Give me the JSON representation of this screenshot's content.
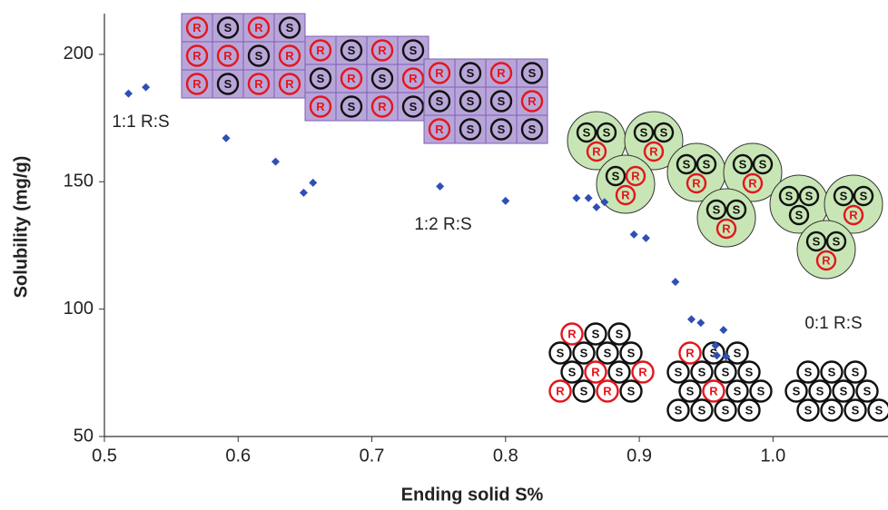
{
  "chart_data": {
    "type": "scatter",
    "x_label": "Ending solid S%",
    "y_label": "Solubility (mg/g)",
    "color": "#2f4fb5",
    "x": [
      0.518,
      0.531,
      0.591,
      0.628,
      0.649,
      0.656,
      0.751,
      0.8,
      0.853,
      0.862,
      0.868,
      0.874,
      0.896,
      0.905,
      0.927,
      0.939,
      0.946,
      0.963,
      0.957,
      0.958,
      0.965
    ],
    "values": [
      184.6,
      187.1,
      167.1,
      157.9,
      145.7,
      149.6,
      148.2,
      142.5,
      143.6,
      143.6,
      140,
      142,
      129.3,
      127.9,
      110.7,
      96,
      94.6,
      91.8,
      85.7,
      81.8,
      81.4
    ],
    "xlim": [
      0.5,
      1.086
    ],
    "ylim": [
      50,
      216
    ],
    "xticks": [
      0.5,
      0.6,
      0.7,
      0.8,
      0.9,
      {
        "value": 1,
        "label": "1.0"
      }
    ],
    "yticks": [
      50,
      100,
      150,
      200
    ],
    "annotations": [
      "1:1 R:S",
      "1:2 R:S",
      "0:1 R:S"
    ]
  },
  "grids": [
    {
      "rows": [
        [
          "R",
          "S",
          "R",
          "S"
        ],
        [
          "R",
          "R",
          "S",
          "R"
        ],
        [
          "R",
          "S",
          "R",
          "R"
        ]
      ]
    },
    {
      "rows": [
        [
          "R",
          "S",
          "R",
          "S"
        ],
        [
          "S",
          "R",
          "S",
          "R"
        ],
        [
          "R",
          "S",
          "R",
          "S"
        ]
      ]
    },
    {
      "rows": [
        [
          "R",
          "S",
          "R",
          "S"
        ],
        [
          "S",
          "S",
          "S",
          "R"
        ],
        [
          "R",
          "S",
          "S",
          "S"
        ]
      ]
    }
  ],
  "clusters": [
    [
      "S",
      "S",
      "R"
    ],
    [
      "S",
      "S",
      "R"
    ],
    [
      "S",
      "R",
      "R"
    ],
    [
      "S",
      "S",
      "R"
    ],
    [
      "S",
      "S",
      "R"
    ],
    [
      "S",
      "S",
      "R"
    ],
    [
      "S",
      "S",
      "S"
    ],
    [
      "S",
      "S",
      "R"
    ],
    [
      "S",
      "S",
      "R"
    ]
  ],
  "packings": [
    {
      "rows": [
        [
          "R",
          "S",
          "S"
        ],
        [
          "S",
          "S",
          "S",
          "S"
        ],
        [
          "S",
          "R",
          "S",
          "R"
        ],
        [
          "R",
          "S",
          "R",
          "S"
        ]
      ]
    },
    {
      "rows": [
        [
          "R",
          "S",
          "S"
        ],
        [
          "S",
          "S",
          "S",
          "S"
        ],
        [
          "S",
          "R",
          "S",
          "S"
        ],
        [
          "S",
          "S",
          "S",
          "S"
        ]
      ]
    },
    {
      "rows": [
        [
          "S",
          "S",
          "S"
        ],
        [
          "S",
          "S",
          "S",
          "S"
        ],
        [
          "S",
          "S",
          "S",
          "S"
        ]
      ]
    }
  ]
}
